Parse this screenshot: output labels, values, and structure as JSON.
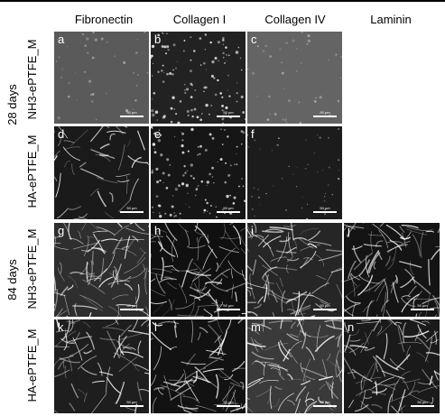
{
  "columns": [
    "Fibronectin",
    "Collagen I",
    "Collagen IV",
    "Laminin"
  ],
  "groups": [
    "28 days",
    "84 days"
  ],
  "rows": [
    "NH3-ePTFE_M",
    "HA-ePTFE_M",
    "NH3-ePTFE_M",
    "HA-ePTFE_M"
  ],
  "panels": [
    {
      "letter": "a",
      "scale": "50 µm",
      "tone": "#5a5a5a",
      "style": "haze"
    },
    {
      "letter": "b",
      "scale": "50 µm",
      "tone": "#222222",
      "style": "specks"
    },
    {
      "letter": "c",
      "scale": "50 µm",
      "tone": "#646464",
      "style": "haze"
    },
    {
      "letter": "d",
      "scale": "50 µm",
      "tone": "#1a1a1a",
      "style": "cells"
    },
    {
      "letter": "e",
      "scale": "50 µm",
      "tone": "#161616",
      "style": "specks"
    },
    {
      "letter": "f",
      "scale": "50 µm",
      "tone": "#1c1c1c",
      "style": "faint"
    },
    {
      "letter": "g",
      "scale": "50 µm",
      "tone": "#2e2e2e",
      "style": "fibers"
    },
    {
      "letter": "h",
      "scale": "50 µm",
      "tone": "#101010",
      "style": "fibers"
    },
    {
      "letter": "i",
      "scale": "50 µm",
      "tone": "#262626",
      "style": "fibers"
    },
    {
      "letter": "j",
      "scale": "50 µm",
      "tone": "#141414",
      "style": "fibers"
    },
    {
      "letter": "k",
      "scale": "50 µm",
      "tone": "#1e1e1e",
      "style": "network"
    },
    {
      "letter": "l",
      "scale": "50 µm",
      "tone": "#121212",
      "style": "network"
    },
    {
      "letter": "m",
      "scale": "50 µm",
      "tone": "#3a3a3a",
      "style": "fibers"
    },
    {
      "letter": "n",
      "scale": "50 µm",
      "tone": "#1a1a1a",
      "style": "fibers"
    }
  ]
}
